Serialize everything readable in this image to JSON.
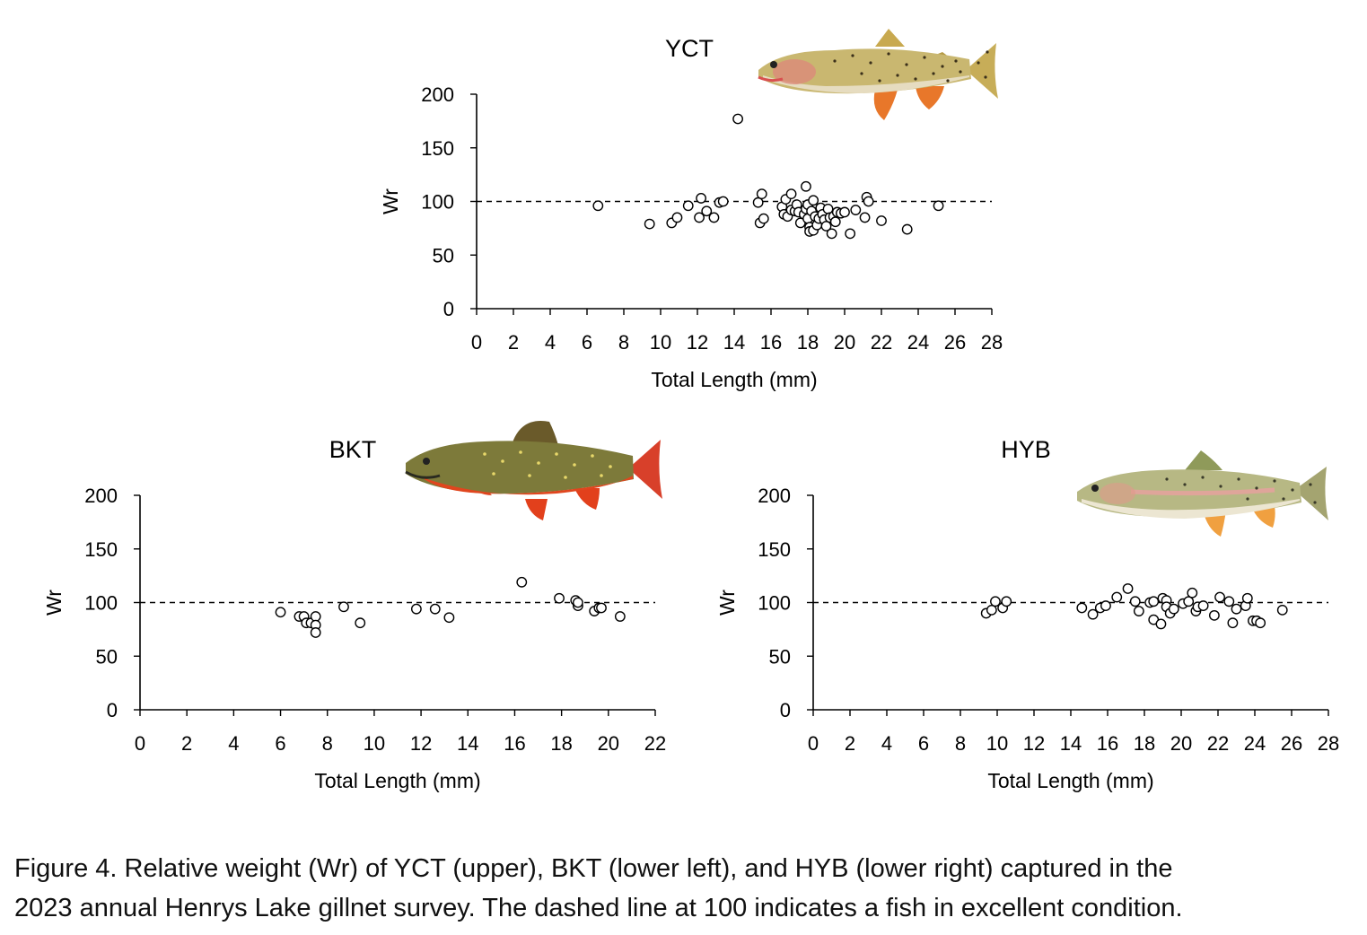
{
  "chart_data": [
    {
      "type": "scatter",
      "title": "YCT",
      "xlabel": "Total Length (mm)",
      "ylabel": "Wr",
      "xlim": [
        0,
        28
      ],
      "ylim": [
        0,
        200
      ],
      "xticks": [
        0,
        2,
        4,
        6,
        8,
        10,
        12,
        14,
        16,
        18,
        20,
        22,
        24,
        26,
        28
      ],
      "yticks": [
        0,
        50,
        100,
        150,
        200
      ],
      "reference_line": {
        "y": 100,
        "style": "dashed"
      },
      "grid": false,
      "fish_illustration": "yellowstone-cutthroat-trout",
      "points": [
        [
          6.6,
          96
        ],
        [
          9.4,
          79
        ],
        [
          10.6,
          80
        ],
        [
          10.9,
          85
        ],
        [
          11.5,
          96
        ],
        [
          12.1,
          85
        ],
        [
          12.2,
          103
        ],
        [
          12.5,
          91
        ],
        [
          12.9,
          85
        ],
        [
          13.2,
          99
        ],
        [
          13.4,
          100
        ],
        [
          14.2,
          177
        ],
        [
          15.3,
          99
        ],
        [
          15.4,
          80
        ],
        [
          15.5,
          107
        ],
        [
          15.6,
          84
        ],
        [
          16.6,
          95
        ],
        [
          16.7,
          88
        ],
        [
          16.8,
          102
        ],
        [
          16.9,
          86
        ],
        [
          17.1,
          92
        ],
        [
          17.1,
          107
        ],
        [
          17.3,
          91
        ],
        [
          17.4,
          97
        ],
        [
          17.5,
          90
        ],
        [
          17.6,
          80
        ],
        [
          17.8,
          88
        ],
        [
          17.9,
          93
        ],
        [
          17.9,
          114
        ],
        [
          18.0,
          84
        ],
        [
          18.0,
          97
        ],
        [
          18.1,
          76
        ],
        [
          18.1,
          72
        ],
        [
          18.2,
          91
        ],
        [
          18.3,
          101
        ],
        [
          18.3,
          73
        ],
        [
          18.4,
          86
        ],
        [
          18.5,
          78
        ],
        [
          18.6,
          84
        ],
        [
          18.7,
          94
        ],
        [
          18.8,
          88
        ],
        [
          18.9,
          83
        ],
        [
          19.0,
          77
        ],
        [
          19.1,
          93
        ],
        [
          19.2,
          85
        ],
        [
          19.3,
          70
        ],
        [
          19.4,
          86
        ],
        [
          19.5,
          81
        ],
        [
          19.6,
          90
        ],
        [
          19.8,
          89
        ],
        [
          20.0,
          90
        ],
        [
          20.3,
          70
        ],
        [
          20.6,
          92
        ],
        [
          21.1,
          85
        ],
        [
          21.2,
          104
        ],
        [
          21.3,
          100
        ],
        [
          22.0,
          82
        ],
        [
          23.4,
          74
        ],
        [
          25.1,
          96
        ]
      ]
    },
    {
      "type": "scatter",
      "title": "BKT",
      "xlabel": "Total Length (mm)",
      "ylabel": "Wr",
      "xlim": [
        0,
        22
      ],
      "ylim": [
        0,
        200
      ],
      "xticks": [
        0,
        2,
        4,
        6,
        8,
        10,
        12,
        14,
        16,
        18,
        20,
        22
      ],
      "yticks": [
        0,
        50,
        100,
        150,
        200
      ],
      "reference_line": {
        "y": 100,
        "style": "dashed"
      },
      "grid": false,
      "fish_illustration": "brook-trout",
      "points": [
        [
          6.0,
          91
        ],
        [
          6.8,
          87
        ],
        [
          7.0,
          87
        ],
        [
          7.1,
          81
        ],
        [
          7.3,
          81
        ],
        [
          7.5,
          87
        ],
        [
          7.5,
          79
        ],
        [
          7.5,
          72
        ],
        [
          8.7,
          96
        ],
        [
          9.4,
          81
        ],
        [
          11.8,
          94
        ],
        [
          12.6,
          94
        ],
        [
          13.2,
          86
        ],
        [
          16.3,
          119
        ],
        [
          17.9,
          104
        ],
        [
          18.6,
          102
        ],
        [
          18.7,
          97
        ],
        [
          18.7,
          100
        ],
        [
          19.4,
          92
        ],
        [
          19.6,
          95
        ],
        [
          19.7,
          95
        ],
        [
          20.5,
          87
        ]
      ]
    },
    {
      "type": "scatter",
      "title": "HYB",
      "xlabel": "Total Length (mm)",
      "ylabel": "Wr",
      "xlim": [
        0,
        28
      ],
      "ylim": [
        0,
        200
      ],
      "xticks": [
        0,
        2,
        4,
        6,
        8,
        10,
        12,
        14,
        16,
        18,
        20,
        22,
        24,
        26,
        28
      ],
      "yticks": [
        0,
        50,
        100,
        150,
        200
      ],
      "reference_line": {
        "y": 100,
        "style": "dashed"
      },
      "grid": false,
      "fish_illustration": "hybrid-trout",
      "points": [
        [
          9.4,
          90
        ],
        [
          9.7,
          93
        ],
        [
          9.9,
          101
        ],
        [
          10.3,
          95
        ],
        [
          10.5,
          101
        ],
        [
          14.6,
          95
        ],
        [
          15.2,
          89
        ],
        [
          15.6,
          95
        ],
        [
          15.9,
          97
        ],
        [
          16.5,
          105
        ],
        [
          17.1,
          113
        ],
        [
          17.5,
          101
        ],
        [
          17.7,
          92
        ],
        [
          18.3,
          100
        ],
        [
          18.5,
          101
        ],
        [
          18.5,
          84
        ],
        [
          18.9,
          80
        ],
        [
          19.0,
          104
        ],
        [
          19.2,
          102
        ],
        [
          19.2,
          96
        ],
        [
          19.4,
          90
        ],
        [
          19.6,
          94
        ],
        [
          20.1,
          99
        ],
        [
          20.4,
          101
        ],
        [
          20.6,
          109
        ],
        [
          20.8,
          92
        ],
        [
          20.9,
          96
        ],
        [
          21.2,
          97
        ],
        [
          21.8,
          88
        ],
        [
          22.1,
          105
        ],
        [
          22.6,
          101
        ],
        [
          22.8,
          81
        ],
        [
          23.0,
          94
        ],
        [
          23.5,
          97
        ],
        [
          23.6,
          104
        ],
        [
          23.9,
          83
        ],
        [
          24.1,
          83
        ],
        [
          24.3,
          81
        ],
        [
          25.5,
          93
        ]
      ]
    }
  ],
  "caption": {
    "line1": "Figure 4. Relative weight (Wr) of YCT (upper), BKT (lower left), and HYB (lower right) captured in the",
    "line2": "2023 annual Henrys Lake gillnet survey. The dashed line at 100 indicates a fish in excellent condition."
  },
  "colors": {
    "axis": "#000000",
    "marker_fill": "#ffffff",
    "marker_stroke": "#000000",
    "reference_line": "#000000",
    "yct_fish": "#c9b770",
    "bkt_fish": "#7d7a3a",
    "bkt_belly": "#e0461e",
    "hyb_fish": "#b7b884",
    "fins": "#e88a2a"
  }
}
